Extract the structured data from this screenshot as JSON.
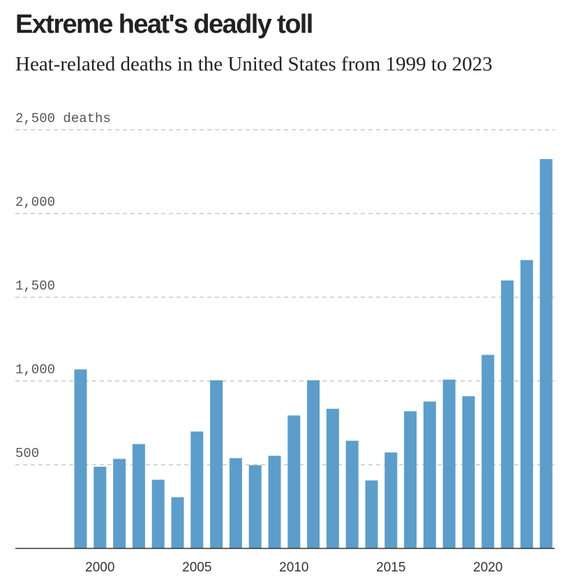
{
  "header": {
    "title": "Extreme heat's deadly toll",
    "subtitle": "Heat-related deaths in the United States from 1999 to 2023"
  },
  "colors": {
    "bar": "#5b9ecb",
    "grid": "#c8c8c8",
    "axis": "#333333"
  },
  "chart_data": {
    "type": "bar",
    "title": "Extreme heat's deadly toll",
    "subtitle": "Heat-related deaths in the United States from 1999 to 2023",
    "xlabel": "",
    "ylabel": "deaths",
    "ylim": [
      0,
      2500
    ],
    "grid": true,
    "y_ticks": [
      {
        "value": 500,
        "label": "500"
      },
      {
        "value": 1000,
        "label": "1,000"
      },
      {
        "value": 1500,
        "label": "1,500"
      },
      {
        "value": 2000,
        "label": "2,000"
      },
      {
        "value": 2500,
        "label": "2,500 deaths"
      }
    ],
    "x_ticks": [
      "2000",
      "2005",
      "2010",
      "2015",
      "2020"
    ],
    "categories": [
      1999,
      2000,
      2001,
      2002,
      2003,
      2004,
      2005,
      2006,
      2007,
      2008,
      2009,
      2010,
      2011,
      2012,
      2013,
      2014,
      2015,
      2016,
      2017,
      2018,
      2019,
      2020,
      2021,
      2022,
      2023
    ],
    "values": [
      1069,
      488,
      535,
      623,
      410,
      306,
      698,
      1004,
      539,
      497,
      553,
      794,
      1004,
      834,
      643,
      406,
      573,
      819,
      877,
      1008,
      909,
      1156,
      1600,
      1722,
      2325
    ]
  }
}
